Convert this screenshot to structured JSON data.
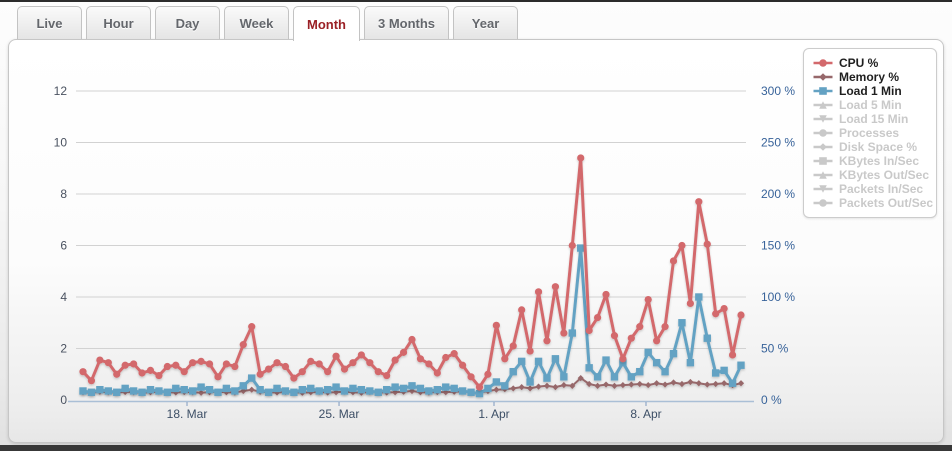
{
  "tabs": [
    {
      "label": "Live",
      "active": false
    },
    {
      "label": "Hour",
      "active": false
    },
    {
      "label": "Day",
      "active": false
    },
    {
      "label": "Week",
      "active": false
    },
    {
      "label": "Month",
      "active": true
    },
    {
      "label": "3 Months",
      "active": false
    },
    {
      "label": "Year",
      "active": false
    }
  ],
  "colors": {
    "cpu": "#d3696c",
    "memory": "#97686b",
    "load": "#64a2c3",
    "inactive_legend": "#c9c9c9",
    "left_axis_text": "#4a5260",
    "right_axis_text": "#38639a",
    "x_axis_text": "#3d4f66",
    "gridline": "#d2d2d2",
    "axis_line": "#aabfd6",
    "active_tab_text": "#9a2025"
  },
  "chart_data": {
    "type": "line",
    "title": "",
    "xlabel": "",
    "ylabel": "",
    "ylim_left": [
      0,
      13
    ],
    "ylim_right_pct": [
      0,
      325
    ],
    "grid": true,
    "legend_position": "top-right",
    "left_ticks": [
      {
        "value": 0,
        "label": "0"
      },
      {
        "value": 2,
        "label": "2"
      },
      {
        "value": 4,
        "label": "4"
      },
      {
        "value": 6,
        "label": "6"
      },
      {
        "value": 8,
        "label": "8"
      },
      {
        "value": 10,
        "label": "10"
      },
      {
        "value": 12,
        "label": "12"
      }
    ],
    "right_ticks": [
      {
        "at_left_value": 0,
        "label": "0 %"
      },
      {
        "at_left_value": 2,
        "label": "50 %"
      },
      {
        "at_left_value": 4,
        "label": "100 %"
      },
      {
        "at_left_value": 6,
        "label": "150 %"
      },
      {
        "at_left_value": 8,
        "label": "200 %"
      },
      {
        "at_left_value": 10,
        "label": "250 %"
      },
      {
        "at_left_value": 12,
        "label": "300 %"
      }
    ],
    "x_ticks": [
      {
        "label": "18. Mar",
        "pos": 12.33
      },
      {
        "label": "25. Mar",
        "pos": 30.35
      },
      {
        "label": "1. Apr",
        "pos": 48.72
      },
      {
        "label": "8. Apr",
        "pos": 66.74
      }
    ],
    "series": [
      {
        "name": "CPU %",
        "slug": "cpu",
        "marker": "circle",
        "color": "#d3696c",
        "active": true,
        "values": [
          1.1,
          0.75,
          1.55,
          1.45,
          1.0,
          1.35,
          1.4,
          1.05,
          1.15,
          0.95,
          1.3,
          1.35,
          1.1,
          1.45,
          1.5,
          1.4,
          0.9,
          1.4,
          1.3,
          2.15,
          2.85,
          1.0,
          1.2,
          1.45,
          1.3,
          0.85,
          1.1,
          1.5,
          1.4,
          1.1,
          1.7,
          1.2,
          1.45,
          1.75,
          1.45,
          1.1,
          0.95,
          1.55,
          1.85,
          2.35,
          1.6,
          1.4,
          1.05,
          1.65,
          1.8,
          1.35,
          0.9,
          0.5,
          1.0,
          2.9,
          1.6,
          2.1,
          3.5,
          1.9,
          4.2,
          2.3,
          4.4,
          2.6,
          6.0,
          9.4,
          2.7,
          3.2,
          4.1,
          2.5,
          1.6,
          2.4,
          2.85,
          3.9,
          2.3,
          2.85,
          5.4,
          6.0,
          3.75,
          7.7,
          6.05,
          3.35,
          3.55,
          1.75,
          3.3
        ]
      },
      {
        "name": "Memory %",
        "slug": "memory",
        "marker": "diamond",
        "color": "#97686b",
        "active": true,
        "values": [
          0.3,
          0.28,
          0.32,
          0.3,
          0.29,
          0.31,
          0.3,
          0.28,
          0.3,
          0.32,
          0.3,
          0.29,
          0.31,
          0.3,
          0.28,
          0.3,
          0.32,
          0.3,
          0.29,
          0.35,
          0.4,
          0.32,
          0.3,
          0.29,
          0.31,
          0.3,
          0.28,
          0.3,
          0.31,
          0.29,
          0.3,
          0.32,
          0.3,
          0.28,
          0.31,
          0.3,
          0.29,
          0.3,
          0.32,
          0.35,
          0.3,
          0.29,
          0.31,
          0.3,
          0.32,
          0.33,
          0.3,
          0.28,
          0.35,
          0.4,
          0.42,
          0.45,
          0.5,
          0.45,
          0.52,
          0.55,
          0.5,
          0.58,
          0.55,
          0.85,
          0.62,
          0.55,
          0.6,
          0.55,
          0.58,
          0.6,
          0.62,
          0.58,
          0.65,
          0.6,
          0.68,
          0.62,
          0.7,
          0.65,
          0.6,
          0.62,
          0.65,
          0.58,
          0.65
        ]
      },
      {
        "name": "Load 1 Min",
        "slug": "load-1-min",
        "marker": "square",
        "color": "#64a2c3",
        "active": true,
        "values": [
          0.35,
          0.3,
          0.4,
          0.35,
          0.3,
          0.45,
          0.35,
          0.3,
          0.4,
          0.35,
          0.3,
          0.45,
          0.4,
          0.35,
          0.5,
          0.4,
          0.3,
          0.45,
          0.35,
          0.55,
          0.85,
          0.4,
          0.3,
          0.45,
          0.35,
          0.3,
          0.4,
          0.45,
          0.35,
          0.4,
          0.5,
          0.35,
          0.45,
          0.4,
          0.35,
          0.3,
          0.4,
          0.5,
          0.45,
          0.55,
          0.45,
          0.35,
          0.4,
          0.5,
          0.45,
          0.35,
          0.3,
          0.25,
          0.45,
          0.7,
          0.55,
          1.1,
          1.5,
          0.7,
          1.5,
          0.85,
          1.6,
          0.9,
          2.6,
          5.9,
          1.25,
          0.9,
          1.55,
          0.9,
          1.45,
          0.9,
          1.1,
          1.85,
          1.45,
          1.1,
          1.8,
          3.0,
          1.45,
          4.0,
          2.4,
          1.05,
          1.15,
          0.65,
          1.35
        ]
      },
      {
        "name": "Load 5 Min",
        "slug": "load-5-min",
        "marker": "triangle-up",
        "active": false
      },
      {
        "name": "Load 15 Min",
        "slug": "load-15-min",
        "marker": "triangle-down",
        "active": false
      },
      {
        "name": "Processes",
        "slug": "processes",
        "marker": "circle",
        "active": false
      },
      {
        "name": "Disk Space %",
        "slug": "disk-space",
        "marker": "diamond",
        "active": false
      },
      {
        "name": "KBytes In/Sec",
        "slug": "kbytes-in-sec",
        "marker": "square",
        "active": false
      },
      {
        "name": "KBytes Out/Sec",
        "slug": "kbytes-out-sec",
        "marker": "triangle-up",
        "active": false
      },
      {
        "name": "Packets In/Sec",
        "slug": "packets-in-sec",
        "marker": "triangle-down",
        "active": false
      },
      {
        "name": "Packets Out/Sec",
        "slug": "packets-out-sec",
        "marker": "circle",
        "active": false
      }
    ]
  }
}
